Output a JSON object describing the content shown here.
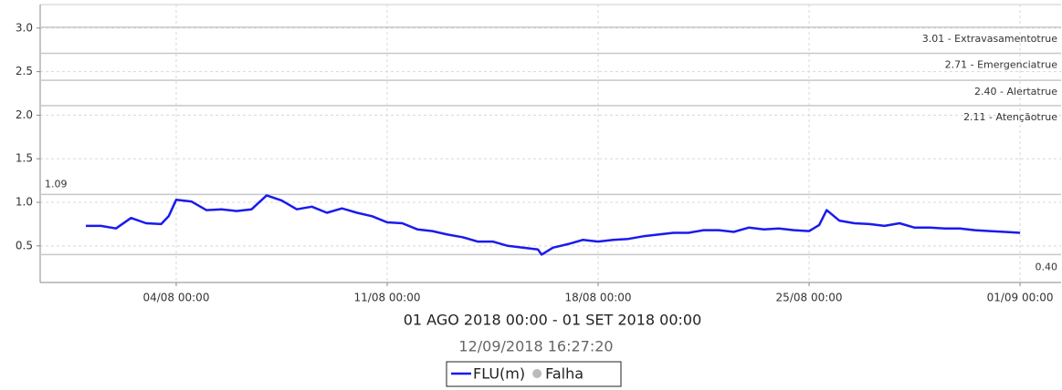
{
  "chart_data": {
    "type": "line",
    "title": "01 AGO 2018 00:00 - 01 SET 2018 00:00",
    "subtitle": "12/09/2018 16:27:20",
    "x": [
      "01/08 00:00",
      "01/08 12:00",
      "02/08 00:00",
      "02/08 12:00",
      "03/08 00:00",
      "03/08 12:00",
      "03/08 18:00",
      "04/08 00:00",
      "04/08 12:00",
      "05/08 00:00",
      "05/08 12:00",
      "06/08 00:00",
      "06/08 12:00",
      "07/08 00:00",
      "07/08 12:00",
      "08/08 00:00",
      "08/08 12:00",
      "09/08 00:00",
      "09/08 12:00",
      "10/08 00:00",
      "10/08 12:00",
      "11/08 00:00",
      "11/08 12:00",
      "12/08 00:00",
      "12/08 12:00",
      "13/08 00:00",
      "13/08 12:00",
      "14/08 00:00",
      "14/08 12:00",
      "15/08 00:00",
      "15/08 12:00",
      "16/08 00:00",
      "16/08 03:00",
      "16/08 12:00",
      "17/08 00:00",
      "17/08 12:00",
      "18/08 00:00",
      "18/08 12:00",
      "19/08 00:00",
      "19/08 12:00",
      "20/08 00:00",
      "20/08 12:00",
      "21/08 00:00",
      "21/08 12:00",
      "22/08 00:00",
      "22/08 12:00",
      "23/08 00:00",
      "23/08 12:00",
      "24/08 00:00",
      "24/08 12:00",
      "25/08 00:00",
      "25/08 08:00",
      "25/08 14:00",
      "26/08 00:00",
      "26/08 12:00",
      "27/08 00:00",
      "27/08 12:00",
      "28/08 00:00",
      "28/08 12:00",
      "29/08 00:00",
      "29/08 12:00",
      "30/08 00:00",
      "30/08 12:00",
      "31/08 00:00",
      "31/08 12:00",
      "01/09 00:00"
    ],
    "series": [
      {
        "name": "FLU(m)",
        "color": "#1a1aee",
        "values": [
          0.73,
          0.73,
          0.7,
          0.82,
          0.76,
          0.75,
          0.84,
          1.03,
          1.01,
          0.91,
          0.92,
          0.9,
          0.92,
          1.08,
          1.02,
          0.92,
          0.95,
          0.88,
          0.93,
          0.88,
          0.84,
          0.77,
          0.76,
          0.69,
          0.67,
          0.63,
          0.6,
          0.55,
          0.55,
          0.5,
          0.48,
          0.46,
          0.4,
          0.48,
          0.52,
          0.57,
          0.55,
          0.57,
          0.58,
          0.61,
          0.63,
          0.65,
          0.65,
          0.68,
          0.68,
          0.66,
          0.71,
          0.69,
          0.7,
          0.68,
          0.67,
          0.74,
          0.91,
          0.79,
          0.76,
          0.75,
          0.73,
          0.76,
          0.71,
          0.71,
          0.7,
          0.7,
          0.68,
          0.67,
          0.66,
          0.65
        ]
      }
    ],
    "markers": [
      {
        "name": "Falha",
        "color": "#bbbbbb"
      }
    ],
    "xlim": [
      "30/07 11:40",
      "02/09 08:40"
    ],
    "xticks": [
      "04/08 00:00",
      "11/08 00:00",
      "18/08 00:00",
      "25/08 00:00",
      "01/09 00:00"
    ],
    "ylim": [
      0.08,
      3.27
    ],
    "yticks": [
      0.5,
      {
        "value": 1,
        "label": "1.0"
      },
      1.5,
      {
        "value": 2,
        "label": "2.0"
      },
      2.5,
      {
        "value": 3,
        "label": "3.0"
      }
    ],
    "grid": true,
    "thresholds": [
      {
        "value": 3.01,
        "label": "3.01 - Extravasamentotrue"
      },
      {
        "value": 2.71,
        "label": "2.71 - Emergenciatrue"
      },
      {
        "value": 2.4,
        "label": "2.40 - Alertatrue"
      },
      {
        "value": 2.11,
        "label": "2.11 - Atençãotrue"
      }
    ],
    "max": {
      "value": 1.09,
      "label": "1.09"
    },
    "min": {
      "value": 0.4,
      "label": "0.40"
    }
  }
}
